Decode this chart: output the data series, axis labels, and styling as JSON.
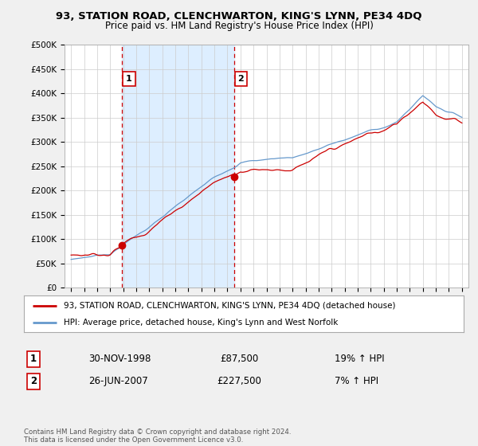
{
  "title": "93, STATION ROAD, CLENCHWARTON, KING'S LYNN, PE34 4DQ",
  "subtitle": "Price paid vs. HM Land Registry's House Price Index (HPI)",
  "ylabel_ticks": [
    "£0",
    "£50K",
    "£100K",
    "£150K",
    "£200K",
    "£250K",
    "£300K",
    "£350K",
    "£400K",
    "£450K",
    "£500K"
  ],
  "ytick_values": [
    0,
    50000,
    100000,
    150000,
    200000,
    250000,
    300000,
    350000,
    400000,
    450000,
    500000
  ],
  "price_paid_color": "#cc0000",
  "hpi_color": "#6699cc",
  "shade_color": "#ddeeff",
  "background_color": "#f0f0f0",
  "plot_bg_color": "#ffffff",
  "grid_color": "#cccccc",
  "marker1_price": 87500,
  "marker2_price": 227500,
  "marker1_year": 1998.92,
  "marker2_year": 2007.49,
  "legend_line1": "93, STATION ROAD, CLENCHWARTON, KING'S LYNN, PE34 4DQ (detached house)",
  "legend_line2": "HPI: Average price, detached house, King's Lynn and West Norfolk",
  "table_row1": [
    "1",
    "30-NOV-1998",
    "£87,500",
    "19% ↑ HPI"
  ],
  "table_row2": [
    "2",
    "26-JUN-2007",
    "£227,500",
    "7% ↑ HPI"
  ],
  "footer": "Contains HM Land Registry data © Crown copyright and database right 2024.\nThis data is licensed under the Open Government Licence v3.0."
}
